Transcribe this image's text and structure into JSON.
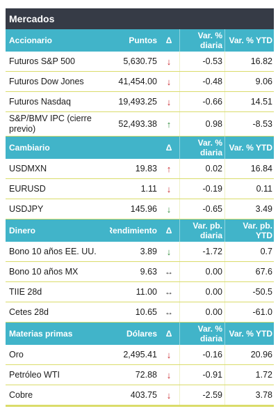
{
  "title": "Mercados",
  "sections": [
    {
      "name": "Accionario",
      "col2": "Puntos",
      "col3": "Δ",
      "col4": "Var. % diaria",
      "col5": "Var. % YTD",
      "rows": [
        {
          "name": "Futuros S&P 500",
          "value": "5,630.75",
          "arrow": "down-red",
          "var": "-0.53",
          "ytd": "16.82"
        },
        {
          "name": "Futuros Dow Jones",
          "value": "41,454.00",
          "arrow": "down-red",
          "var": "-0.48",
          "ytd": "9.06"
        },
        {
          "name": "Futuros Nasdaq",
          "value": "19,493.25",
          "arrow": "down-red",
          "var": "-0.66",
          "ytd": "14.51"
        },
        {
          "name": "S&P/BMV IPC (cierre previo)",
          "value": "52,493.38",
          "arrow": "up-green",
          "var": "0.98",
          "ytd": "-8.53",
          "tall": true
        }
      ]
    },
    {
      "name": "Cambiario",
      "col2": "",
      "col3": "Δ",
      "col4": "Var. % diaria",
      "col5": "Var. % YTD",
      "rows": [
        {
          "name": "USDMXN",
          "value": "19.83",
          "arrow": "up-red",
          "var": "0.02",
          "ytd": "16.84"
        },
        {
          "name": "EURUSD",
          "value": "1.11",
          "arrow": "down-red",
          "var": "-0.19",
          "ytd": "0.11"
        },
        {
          "name": "USDJPY",
          "value": "145.96",
          "arrow": "down-green",
          "var": "-0.65",
          "ytd": "3.49"
        }
      ]
    },
    {
      "name": "Dinero",
      "col2": "Rendimiento",
      "col3": "Δ",
      "col4": "Var. pb. diaria",
      "col5": "Var. pb. YTD",
      "rows": [
        {
          "name": "Bono 10 años EE. UU.",
          "value": "3.89",
          "arrow": "down-green",
          "var": "-1.72",
          "ytd": "0.7"
        },
        {
          "name": "Bono 10 años MX",
          "value": "9.63",
          "arrow": "flat",
          "var": "0.00",
          "ytd": "67.6"
        },
        {
          "name": "TIIE 28d",
          "value": "11.00",
          "arrow": "flat",
          "var": "0.00",
          "ytd": "-50.5"
        },
        {
          "name": "Cetes 28d",
          "value": "10.65",
          "arrow": "flat",
          "var": "0.00",
          "ytd": "-61.0"
        }
      ]
    },
    {
      "name": "Materias primas",
      "col2": "Dólares",
      "col3": "Δ",
      "col4": "Var. % diaria",
      "col5": "Var. % YTD",
      "rows": [
        {
          "name": "Oro",
          "value": "2,495.41",
          "arrow": "down-red",
          "var": "-0.16",
          "ytd": "20.96"
        },
        {
          "name": "Petróleo WTI",
          "value": "72.88",
          "arrow": "down-red",
          "var": "-0.91",
          "ytd": "1.72"
        },
        {
          "name": "Cobre",
          "value": "403.75",
          "arrow": "down-red",
          "var": "-2.59",
          "ytd": "3.78"
        }
      ]
    }
  ],
  "arrow_glyphs": {
    "down-red": "↓",
    "up-red": "↑",
    "down-green": "↓",
    "up-green": "↑",
    "flat": "↔"
  },
  "colors": {
    "title_bg": "#363b46",
    "header_bg": "#41b4c9",
    "row_border": "#dadc6a",
    "red": "#c8262c",
    "green": "#2e8a3a"
  }
}
